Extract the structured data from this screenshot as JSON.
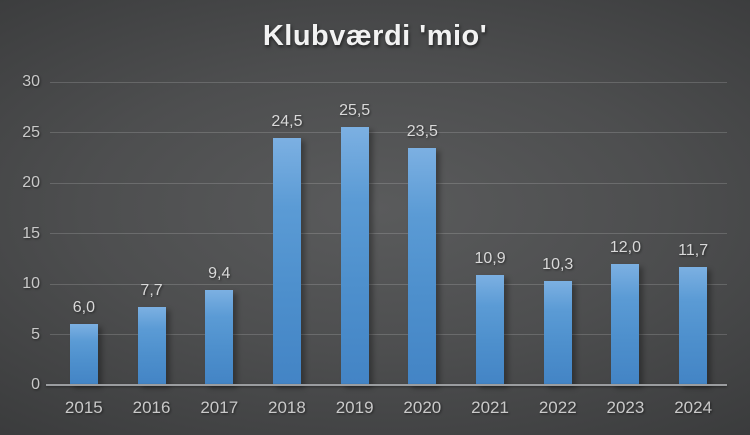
{
  "chart_data": {
    "type": "bar",
    "title": "Klubværdi 'mio'",
    "categories": [
      "2015",
      "2016",
      "2017",
      "2018",
      "2019",
      "2020",
      "2021",
      "2022",
      "2023",
      "2024"
    ],
    "values": [
      6.0,
      7.7,
      9.4,
      24.5,
      25.5,
      23.5,
      10.9,
      10.3,
      12.0,
      11.7
    ],
    "value_labels": [
      "6,0",
      "7,7",
      "9,4",
      "24,5",
      "25,5",
      "23,5",
      "10,9",
      "10,3",
      "12,0",
      "11,7"
    ],
    "xlabel": "",
    "ylabel": "",
    "ylim": [
      0,
      30
    ],
    "ytick_step": 5,
    "ytick_labels": [
      "0",
      "5",
      "10",
      "15",
      "20",
      "25",
      "30"
    ],
    "grid": true,
    "legend_position": "none",
    "decimal_separator": ",",
    "colors": {
      "bar_fill": "#5b9bd5",
      "bar_gradient_top": "#7cb0e2",
      "bar_gradient_bottom": "#4384c5",
      "title_text": "#f2f2f2",
      "axis_text": "#c9c9c9",
      "data_label_text": "#d9d9d9",
      "gridline": "#6a6b6c",
      "axis_line": "#9b9da0",
      "background_center": "#5a5b5c",
      "background_edge": "#232425"
    }
  }
}
